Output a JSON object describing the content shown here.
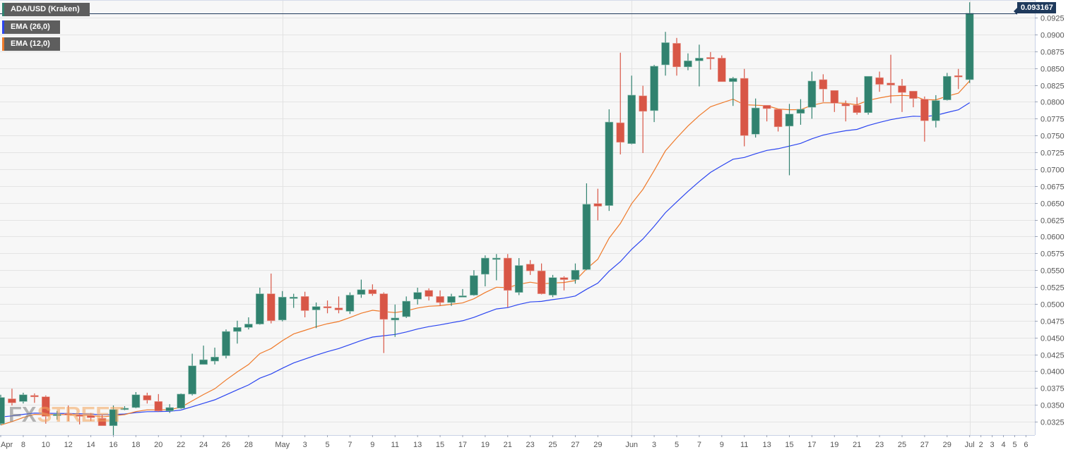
{
  "legend": {
    "symbol": "ADA/USD (Kraken)",
    "ema_slow": "EMA (26,0)",
    "ema_fast": "EMA (12,0)"
  },
  "last_price_label": "0.093167",
  "watermark": {
    "fx": "FX",
    "street": "STREET"
  },
  "colors": {
    "up": "#31826f",
    "down": "#d85646",
    "ema_slow": "#2b45f0",
    "ema_fast": "#ef7a2a",
    "last_price": "#1f3a5c"
  },
  "chart_data": {
    "type": "candlestick",
    "title": "ADA/USD (Kraken)",
    "ylim": [
      0.0305,
      0.0955
    ],
    "yticks": [
      "0.0325",
      "0.0350",
      "0.0375",
      "0.0400",
      "0.0425",
      "0.0450",
      "0.0475",
      "0.0500",
      "0.0525",
      "0.0550",
      "0.0575",
      "0.0600",
      "0.0625",
      "0.0650",
      "0.0675",
      "0.0700",
      "0.0725",
      "0.0750",
      "0.0775",
      "0.0800",
      "0.0825",
      "0.0850",
      "0.0875",
      "0.0900",
      "0.0925"
    ],
    "xticks": [
      {
        "label": "Apr",
        "date": "04-06"
      },
      {
        "label": "8",
        "date": "04-08"
      },
      {
        "label": "10",
        "date": "04-10"
      },
      {
        "label": "12",
        "date": "04-12"
      },
      {
        "label": "14",
        "date": "04-14"
      },
      {
        "label": "16",
        "date": "04-16"
      },
      {
        "label": "18",
        "date": "04-18"
      },
      {
        "label": "20",
        "date": "04-20"
      },
      {
        "label": "22",
        "date": "04-22"
      },
      {
        "label": "24",
        "date": "04-24"
      },
      {
        "label": "26",
        "date": "04-26"
      },
      {
        "label": "28",
        "date": "04-28"
      },
      {
        "label": "May",
        "date": "05-01"
      },
      {
        "label": "3",
        "date": "05-03"
      },
      {
        "label": "5",
        "date": "05-05"
      },
      {
        "label": "7",
        "date": "05-07"
      },
      {
        "label": "9",
        "date": "05-09"
      },
      {
        "label": "11",
        "date": "05-11"
      },
      {
        "label": "13",
        "date": "05-13"
      },
      {
        "label": "15",
        "date": "05-15"
      },
      {
        "label": "17",
        "date": "05-17"
      },
      {
        "label": "19",
        "date": "05-19"
      },
      {
        "label": "21",
        "date": "05-21"
      },
      {
        "label": "23",
        "date": "05-23"
      },
      {
        "label": "25",
        "date": "05-25"
      },
      {
        "label": "27",
        "date": "05-27"
      },
      {
        "label": "29",
        "date": "05-29"
      },
      {
        "label": "Jun",
        "date": "06-01"
      },
      {
        "label": "3",
        "date": "06-03"
      },
      {
        "label": "5",
        "date": "06-05"
      },
      {
        "label": "7",
        "date": "06-07"
      },
      {
        "label": "9",
        "date": "06-09"
      },
      {
        "label": "11",
        "date": "06-11"
      },
      {
        "label": "13",
        "date": "06-13"
      },
      {
        "label": "15",
        "date": "06-15"
      },
      {
        "label": "17",
        "date": "06-17"
      },
      {
        "label": "19",
        "date": "06-19"
      },
      {
        "label": "21",
        "date": "06-21"
      },
      {
        "label": "23",
        "date": "06-23"
      },
      {
        "label": "25",
        "date": "06-25"
      },
      {
        "label": "27",
        "date": "06-27"
      },
      {
        "label": "29",
        "date": "06-29"
      },
      {
        "label": "Jul",
        "date": "07-01"
      },
      {
        "label": "2",
        "date": "07-02"
      },
      {
        "label": "3",
        "date": "07-03"
      },
      {
        "label": "4",
        "date": "07-04"
      },
      {
        "label": "5",
        "date": "07-05"
      },
      {
        "label": "6",
        "date": "07-06"
      }
    ],
    "month_lines": [
      "05-01",
      "06-01",
      "07-01"
    ],
    "last_price": 0.093167,
    "ema_periods": {
      "fast": 12,
      "slow": 26
    },
    "ema_start": {
      "fast": 0.032,
      "slow": 0.0332
    },
    "candle_fields": [
      "date",
      "open",
      "high",
      "low",
      "close"
    ],
    "candles": [
      [
        "04-06",
        0.0322,
        0.0365,
        0.032,
        0.0361
      ],
      [
        "04-07",
        0.0359,
        0.0374,
        0.0349,
        0.0353
      ],
      [
        "04-08",
        0.0355,
        0.0368,
        0.0352,
        0.0365
      ],
      [
        "04-09",
        0.0364,
        0.0367,
        0.0353,
        0.0362
      ],
      [
        "04-10",
        0.0362,
        0.0364,
        0.0322,
        0.0333
      ],
      [
        "04-11",
        0.0334,
        0.0341,
        0.0328,
        0.0336
      ],
      [
        "04-12",
        0.0337,
        0.0349,
        0.0326,
        0.0335
      ],
      [
        "04-13",
        0.0335,
        0.0336,
        0.0321,
        0.0333
      ],
      [
        "04-14",
        0.0334,
        0.0338,
        0.0326,
        0.0331
      ],
      [
        "04-15",
        0.033,
        0.0336,
        0.0319,
        0.0319
      ],
      [
        "04-16",
        0.0319,
        0.0349,
        0.0305,
        0.0343
      ],
      [
        "04-17",
        0.0344,
        0.0348,
        0.0342,
        0.0345
      ],
      [
        "04-18",
        0.0346,
        0.0369,
        0.0345,
        0.0365
      ],
      [
        "04-19",
        0.0364,
        0.0368,
        0.0352,
        0.0357
      ],
      [
        "04-20",
        0.0355,
        0.0366,
        0.034,
        0.0341
      ],
      [
        "04-21",
        0.0341,
        0.0351,
        0.0338,
        0.0346
      ],
      [
        "04-22",
        0.0345,
        0.0367,
        0.0344,
        0.0366
      ],
      [
        "04-23",
        0.0366,
        0.0426,
        0.0364,
        0.0408
      ],
      [
        "04-24",
        0.041,
        0.0438,
        0.041,
        0.0417
      ],
      [
        "04-25",
        0.0415,
        0.0435,
        0.041,
        0.0421
      ],
      [
        "04-26",
        0.0423,
        0.0462,
        0.0419,
        0.0459
      ],
      [
        "04-27",
        0.0459,
        0.0475,
        0.0441,
        0.0465
      ],
      [
        "04-28",
        0.0465,
        0.048,
        0.0462,
        0.047
      ],
      [
        "04-29",
        0.047,
        0.0524,
        0.0469,
        0.0515
      ],
      [
        "04-30",
        0.0515,
        0.0545,
        0.0471,
        0.0475
      ],
      [
        "05-01",
        0.0476,
        0.0519,
        0.0474,
        0.051
      ],
      [
        "05-02",
        0.0509,
        0.0515,
        0.0494,
        0.051
      ],
      [
        "05-03",
        0.0511,
        0.0518,
        0.048,
        0.049
      ],
      [
        "05-04",
        0.0491,
        0.0502,
        0.0464,
        0.0496
      ],
      [
        "05-05",
        0.0496,
        0.0505,
        0.0486,
        0.0495
      ],
      [
        "05-06",
        0.0494,
        0.0511,
        0.0486,
        0.0491
      ],
      [
        "05-07",
        0.0489,
        0.0517,
        0.0485,
        0.0513
      ],
      [
        "05-08",
        0.0514,
        0.0536,
        0.0509,
        0.0521
      ],
      [
        "05-09",
        0.0521,
        0.0529,
        0.0512,
        0.0515
      ],
      [
        "05-10",
        0.0515,
        0.0517,
        0.0427,
        0.0477
      ],
      [
        "05-11",
        0.0476,
        0.0499,
        0.0451,
        0.0479
      ],
      [
        "05-12",
        0.0481,
        0.0511,
        0.0479,
        0.0504
      ],
      [
        "05-13",
        0.0507,
        0.0524,
        0.0499,
        0.0517
      ],
      [
        "05-14",
        0.052,
        0.0523,
        0.0505,
        0.0511
      ],
      [
        "05-15",
        0.0511,
        0.052,
        0.0497,
        0.0502
      ],
      [
        "05-16",
        0.0502,
        0.0515,
        0.0497,
        0.0511
      ],
      [
        "05-17",
        0.0511,
        0.0522,
        0.0511,
        0.0512
      ],
      [
        "05-18",
        0.0513,
        0.055,
        0.0512,
        0.0542
      ],
      [
        "05-19",
        0.0544,
        0.0572,
        0.0526,
        0.0568
      ],
      [
        "05-20",
        0.0567,
        0.0574,
        0.0535,
        0.0568
      ],
      [
        "05-21",
        0.0568,
        0.0574,
        0.0495,
        0.052
      ],
      [
        "05-22",
        0.0517,
        0.0568,
        0.0513,
        0.0557
      ],
      [
        "05-23",
        0.0559,
        0.0565,
        0.0543,
        0.0549
      ],
      [
        "05-24",
        0.0549,
        0.056,
        0.0514,
        0.0515
      ],
      [
        "05-25",
        0.0513,
        0.0543,
        0.051,
        0.0539
      ],
      [
        "05-26",
        0.0539,
        0.0541,
        0.052,
        0.0536
      ],
      [
        "05-27",
        0.0536,
        0.056,
        0.053,
        0.055
      ],
      [
        "05-28",
        0.0551,
        0.0679,
        0.055,
        0.0648
      ],
      [
        "05-29",
        0.0649,
        0.0671,
        0.0624,
        0.0645
      ],
      [
        "05-30",
        0.0646,
        0.0789,
        0.0638,
        0.077
      ],
      [
        "05-31",
        0.0769,
        0.0873,
        0.0722,
        0.074
      ],
      [
        "06-01",
        0.0738,
        0.0839,
        0.0737,
        0.081
      ],
      [
        "06-02",
        0.0809,
        0.0824,
        0.0724,
        0.0786
      ],
      [
        "06-03",
        0.0787,
        0.0855,
        0.077,
        0.0853
      ],
      [
        "06-04",
        0.0855,
        0.0904,
        0.0839,
        0.0888
      ],
      [
        "06-05",
        0.0887,
        0.0895,
        0.0839,
        0.0852
      ],
      [
        "06-06",
        0.0852,
        0.0872,
        0.0847,
        0.0861
      ],
      [
        "06-07",
        0.0861,
        0.0885,
        0.0823,
        0.0865
      ],
      [
        "06-08",
        0.0866,
        0.0874,
        0.0848,
        0.0865
      ],
      [
        "06-09",
        0.0865,
        0.0869,
        0.083,
        0.083
      ],
      [
        "06-10",
        0.083,
        0.0837,
        0.0794,
        0.0835
      ],
      [
        "06-11",
        0.0835,
        0.0849,
        0.0734,
        0.075
      ],
      [
        "06-12",
        0.0752,
        0.0805,
        0.0747,
        0.0791
      ],
      [
        "06-13",
        0.0795,
        0.0795,
        0.0771,
        0.079
      ],
      [
        "06-14",
        0.0789,
        0.0789,
        0.0756,
        0.0763
      ],
      [
        "06-15",
        0.0764,
        0.0797,
        0.0691,
        0.0782
      ],
      [
        "06-16",
        0.0783,
        0.0804,
        0.0766,
        0.0789
      ],
      [
        "06-17",
        0.0792,
        0.0845,
        0.0775,
        0.0831
      ],
      [
        "06-18",
        0.0833,
        0.0841,
        0.08,
        0.0819
      ],
      [
        "06-19",
        0.0817,
        0.0817,
        0.0785,
        0.0798
      ],
      [
        "06-20",
        0.0797,
        0.0802,
        0.0771,
        0.0794
      ],
      [
        "06-21",
        0.0795,
        0.0807,
        0.0781,
        0.0784
      ],
      [
        "06-22",
        0.0784,
        0.0838,
        0.0781,
        0.0838
      ],
      [
        "06-23",
        0.0836,
        0.0845,
        0.0815,
        0.0826
      ],
      [
        "06-24",
        0.0828,
        0.087,
        0.0798,
        0.0825
      ],
      [
        "06-25",
        0.0824,
        0.0834,
        0.0785,
        0.0814
      ],
      [
        "06-26",
        0.0816,
        0.0816,
        0.0792,
        0.0805
      ],
      [
        "06-27",
        0.0804,
        0.0808,
        0.0741,
        0.0772
      ],
      [
        "06-28",
        0.0772,
        0.081,
        0.0762,
        0.0802
      ],
      [
        "06-29",
        0.0803,
        0.0843,
        0.0802,
        0.0838
      ],
      [
        "06-30",
        0.0839,
        0.0849,
        0.0819,
        0.0838
      ],
      [
        "07-01",
        0.0833,
        0.0948,
        0.0828,
        0.093167
      ]
    ]
  }
}
